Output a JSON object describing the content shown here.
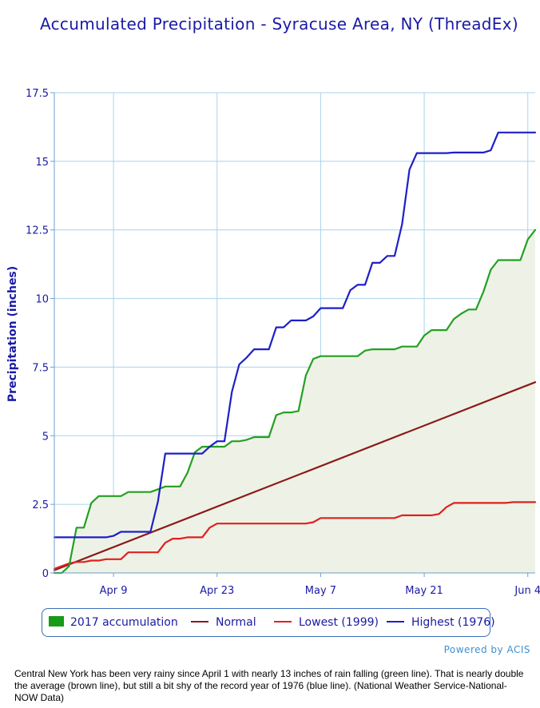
{
  "chart_data": {
    "type": "line",
    "title": "Accumulated Precipitation - Syracuse Area, NY (ThreadEx)",
    "ylabel": "Precipitation (inches)",
    "xlabel": "",
    "ylim": [
      0,
      17.5
    ],
    "xlim": [
      0,
      65
    ],
    "x_unit": "days since Apr 1",
    "yticks": [
      0,
      2.5,
      5,
      7.5,
      10,
      12.5,
      15,
      17.5
    ],
    "ytick_labels": [
      "0",
      "2.5",
      "5",
      "7.5",
      "10",
      "12.5",
      "15",
      "17.5"
    ],
    "xticks": [
      8,
      22,
      36,
      50,
      64
    ],
    "xtick_labels": [
      "Apr 9",
      "Apr 23",
      "May 7",
      "May 21",
      "Jun 4"
    ],
    "grid": true,
    "legend_position": "bottom",
    "series": [
      {
        "name": "2017 accumulation",
        "color": "#22a022",
        "fill": "#eef2e6",
        "legend_style": "swatch",
        "legend_color": "#169b16",
        "points": [
          [
            0,
            0
          ],
          [
            1,
            0
          ],
          [
            2,
            0.25
          ],
          [
            3,
            1.65
          ],
          [
            4,
            1.65
          ],
          [
            5,
            2.55
          ],
          [
            6,
            2.8
          ],
          [
            7,
            2.8
          ],
          [
            8,
            2.8
          ],
          [
            9,
            2.8
          ],
          [
            10,
            2.95
          ],
          [
            11,
            2.95
          ],
          [
            12,
            2.95
          ],
          [
            13,
            2.95
          ],
          [
            14,
            3.05
          ],
          [
            15,
            3.15
          ],
          [
            16,
            3.15
          ],
          [
            17,
            3.15
          ],
          [
            18,
            3.65
          ],
          [
            19,
            4.4
          ],
          [
            20,
            4.6
          ],
          [
            21,
            4.6
          ],
          [
            22,
            4.6
          ],
          [
            23,
            4.6
          ],
          [
            24,
            4.8
          ],
          [
            25,
            4.8
          ],
          [
            26,
            4.85
          ],
          [
            27,
            4.95
          ],
          [
            28,
            4.95
          ],
          [
            29,
            4.95
          ],
          [
            30,
            5.75
          ],
          [
            31,
            5.85
          ],
          [
            32,
            5.85
          ],
          [
            33,
            5.9
          ],
          [
            34,
            7.2
          ],
          [
            35,
            7.8
          ],
          [
            36,
            7.9
          ],
          [
            37,
            7.9
          ],
          [
            38,
            7.9
          ],
          [
            39,
            7.9
          ],
          [
            40,
            7.9
          ],
          [
            41,
            7.9
          ],
          [
            42,
            8.1
          ],
          [
            43,
            8.15
          ],
          [
            44,
            8.15
          ],
          [
            45,
            8.15
          ],
          [
            46,
            8.15
          ],
          [
            47,
            8.25
          ],
          [
            48,
            8.25
          ],
          [
            49,
            8.25
          ],
          [
            50,
            8.65
          ],
          [
            51,
            8.85
          ],
          [
            52,
            8.85
          ],
          [
            53,
            8.85
          ],
          [
            54,
            9.25
          ],
          [
            55,
            9.45
          ],
          [
            56,
            9.6
          ],
          [
            57,
            9.6
          ],
          [
            58,
            10.25
          ],
          [
            59,
            11.05
          ],
          [
            60,
            11.4
          ],
          [
            61,
            11.4
          ],
          [
            62,
            11.4
          ],
          [
            63,
            11.4
          ],
          [
            64,
            12.15
          ],
          [
            65,
            12.5
          ]
        ]
      },
      {
        "name": "Normal",
        "color": "#8b1a1a",
        "legend_style": "line",
        "points": [
          [
            0,
            0.1
          ],
          [
            65,
            6.95
          ]
        ]
      },
      {
        "name": "Lowest (1999)",
        "color": "#e02020",
        "legend_style": "line",
        "points": [
          [
            0,
            0.15
          ],
          [
            1,
            0.25
          ],
          [
            2,
            0.35
          ],
          [
            3,
            0.4
          ],
          [
            4,
            0.4
          ],
          [
            5,
            0.45
          ],
          [
            6,
            0.45
          ],
          [
            7,
            0.5
          ],
          [
            8,
            0.5
          ],
          [
            9,
            0.5
          ],
          [
            10,
            0.75
          ],
          [
            11,
            0.75
          ],
          [
            12,
            0.75
          ],
          [
            13,
            0.75
          ],
          [
            14,
            0.75
          ],
          [
            15,
            1.1
          ],
          [
            16,
            1.25
          ],
          [
            17,
            1.25
          ],
          [
            18,
            1.3
          ],
          [
            19,
            1.3
          ],
          [
            20,
            1.3
          ],
          [
            21,
            1.65
          ],
          [
            22,
            1.8
          ],
          [
            23,
            1.8
          ],
          [
            24,
            1.8
          ],
          [
            25,
            1.8
          ],
          [
            26,
            1.8
          ],
          [
            27,
            1.8
          ],
          [
            28,
            1.8
          ],
          [
            29,
            1.8
          ],
          [
            30,
            1.8
          ],
          [
            31,
            1.8
          ],
          [
            32,
            1.8
          ],
          [
            33,
            1.8
          ],
          [
            34,
            1.8
          ],
          [
            35,
            1.85
          ],
          [
            36,
            2.0
          ],
          [
            37,
            2.0
          ],
          [
            38,
            2.0
          ],
          [
            39,
            2.0
          ],
          [
            40,
            2.0
          ],
          [
            41,
            2.0
          ],
          [
            42,
            2.0
          ],
          [
            43,
            2.0
          ],
          [
            44,
            2.0
          ],
          [
            45,
            2.0
          ],
          [
            46,
            2.0
          ],
          [
            47,
            2.1
          ],
          [
            48,
            2.1
          ],
          [
            49,
            2.1
          ],
          [
            50,
            2.1
          ],
          [
            51,
            2.1
          ],
          [
            52,
            2.15
          ],
          [
            53,
            2.4
          ],
          [
            54,
            2.55
          ],
          [
            55,
            2.55
          ],
          [
            56,
            2.55
          ],
          [
            57,
            2.55
          ],
          [
            58,
            2.55
          ],
          [
            59,
            2.55
          ],
          [
            60,
            2.55
          ],
          [
            61,
            2.55
          ],
          [
            62,
            2.58
          ],
          [
            63,
            2.58
          ],
          [
            64,
            2.58
          ],
          [
            65,
            2.58
          ]
        ]
      },
      {
        "name": "Highest (1976)",
        "color": "#1f1fc8",
        "legend_style": "line",
        "points": [
          [
            0,
            1.3
          ],
          [
            1,
            1.3
          ],
          [
            2,
            1.3
          ],
          [
            3,
            1.3
          ],
          [
            4,
            1.3
          ],
          [
            5,
            1.3
          ],
          [
            6,
            1.3
          ],
          [
            7,
            1.3
          ],
          [
            8,
            1.35
          ],
          [
            9,
            1.5
          ],
          [
            10,
            1.5
          ],
          [
            11,
            1.5
          ],
          [
            12,
            1.5
          ],
          [
            13,
            1.5
          ],
          [
            14,
            2.6
          ],
          [
            15,
            4.35
          ],
          [
            16,
            4.35
          ],
          [
            17,
            4.35
          ],
          [
            18,
            4.35
          ],
          [
            19,
            4.35
          ],
          [
            20,
            4.35
          ],
          [
            21,
            4.6
          ],
          [
            22,
            4.8
          ],
          [
            23,
            4.8
          ],
          [
            24,
            6.6
          ],
          [
            25,
            7.6
          ],
          [
            26,
            7.85
          ],
          [
            27,
            8.15
          ],
          [
            28,
            8.15
          ],
          [
            29,
            8.15
          ],
          [
            30,
            8.95
          ],
          [
            31,
            8.95
          ],
          [
            32,
            9.2
          ],
          [
            33,
            9.2
          ],
          [
            34,
            9.2
          ],
          [
            35,
            9.35
          ],
          [
            36,
            9.65
          ],
          [
            37,
            9.65
          ],
          [
            38,
            9.65
          ],
          [
            39,
            9.65
          ],
          [
            40,
            10.3
          ],
          [
            41,
            10.5
          ],
          [
            42,
            10.5
          ],
          [
            43,
            11.3
          ],
          [
            44,
            11.3
          ],
          [
            45,
            11.55
          ],
          [
            46,
            11.55
          ],
          [
            47,
            12.7
          ],
          [
            48,
            14.7
          ],
          [
            49,
            15.3
          ],
          [
            50,
            15.3
          ],
          [
            51,
            15.3
          ],
          [
            52,
            15.3
          ],
          [
            53,
            15.3
          ],
          [
            54,
            15.32
          ],
          [
            55,
            15.32
          ],
          [
            56,
            15.32
          ],
          [
            57,
            15.32
          ],
          [
            58,
            15.32
          ],
          [
            59,
            15.4
          ],
          [
            60,
            16.05
          ],
          [
            61,
            16.05
          ],
          [
            62,
            16.05
          ],
          [
            63,
            16.05
          ],
          [
            64,
            16.05
          ],
          [
            65,
            16.05
          ]
        ]
      }
    ]
  },
  "footer": {
    "powered_by": "Powered by ACIS",
    "caption": "Central New York has been very rainy since April 1 with nearly 13 inches of rain falling (green line). That is nearly double the average (brown line), but still a bit shy of the record year of 1976 (blue line). (National Weather Service-National- NOW Data)"
  }
}
